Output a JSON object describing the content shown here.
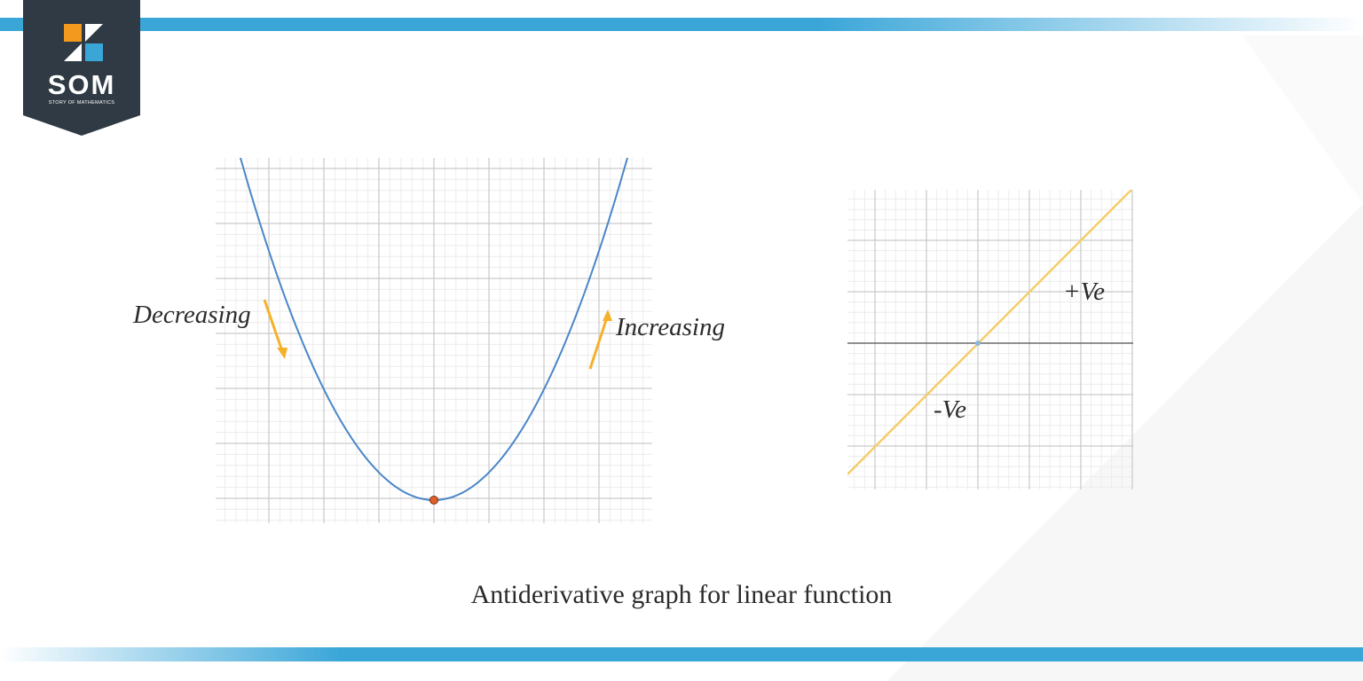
{
  "logo": {
    "text": "SOM",
    "subtitle": "STORY OF MATHEMATICS",
    "colors": {
      "badge": "#2f3a44",
      "orange": "#f39a1e",
      "blue": "#3aa6d8"
    }
  },
  "colors": {
    "accent_bar": "#3aa6d8",
    "parabola": "#4a86c8",
    "vertex_point": "#e0602a",
    "line": "#f5cd6a",
    "arrow": "#f5b12a",
    "grid_major": "#c9c9c9",
    "grid_minor": "#ececec",
    "axis": "#555555"
  },
  "left_graph": {
    "curve": "parabola, minimum at vertex",
    "label_decreasing": "Decreasing",
    "label_increasing": "Increasing"
  },
  "right_graph": {
    "curve": "straight line through origin, positive slope",
    "label_positive": "+Ve",
    "label_negative": "-Ve"
  },
  "caption": "Antiderivative graph for linear function"
}
